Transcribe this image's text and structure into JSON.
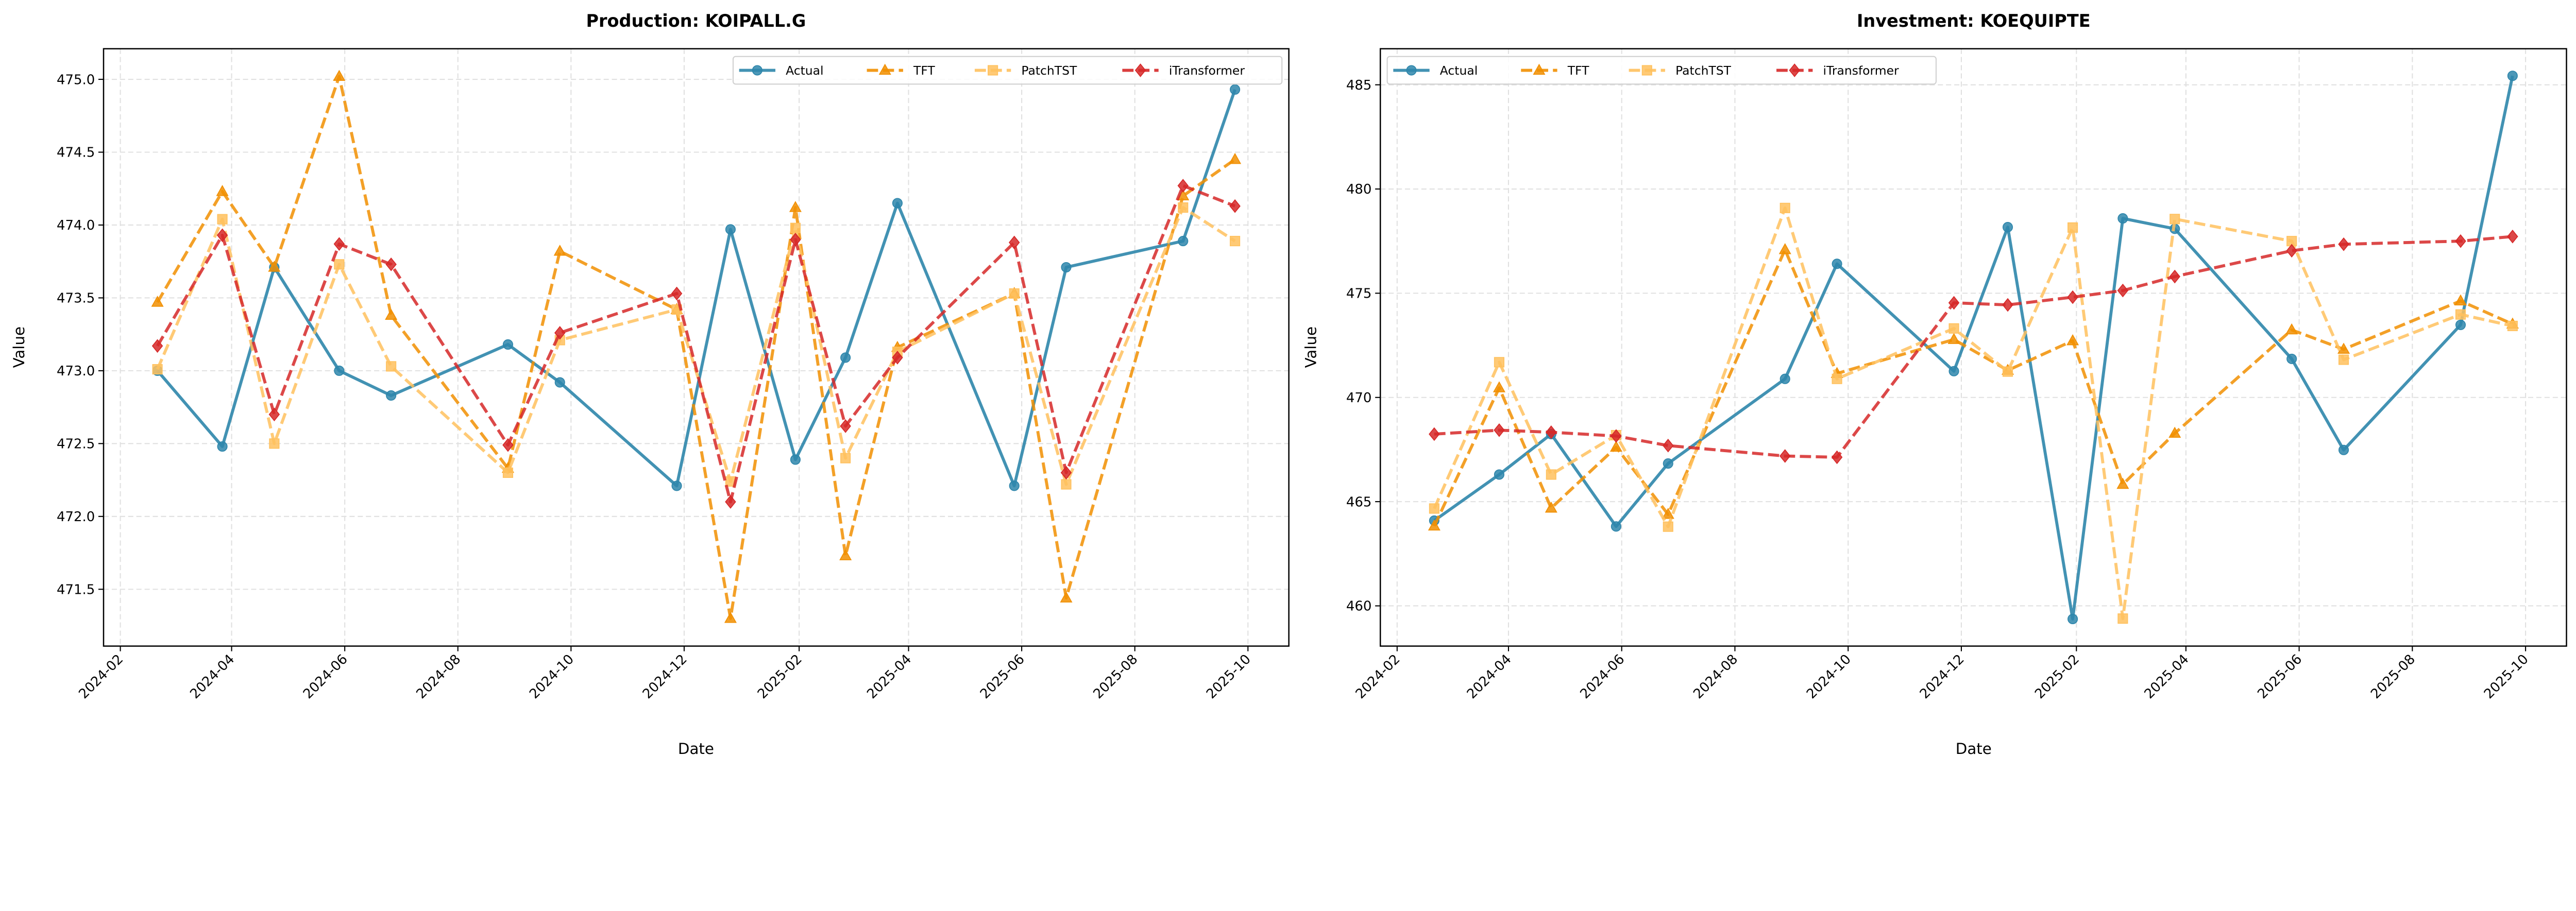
{
  "chart_data": [
    {
      "type": "line",
      "title": "Production: KOIPALL.G",
      "xlabel": "Date",
      "ylabel": "Value",
      "ylim": [
        471.11,
        475.21
      ],
      "yticks": [
        "471.5",
        "472.0",
        "472.5",
        "473.0",
        "473.5",
        "474.0",
        "474.5",
        "475.0"
      ],
      "xticks": [
        "2024-02",
        "2024-04",
        "2024-06",
        "2024-08",
        "2024-10",
        "2024-12",
        "2025-02",
        "2025-04",
        "2025-06",
        "2025-08",
        "2025-10"
      ],
      "grid": true,
      "legend_position": "upper-right",
      "x": [
        "2024-02-21",
        "2024-03-27",
        "2024-04-24",
        "2024-05-29",
        "2024-06-26",
        "2024-08-28",
        "2024-09-25",
        "2024-11-27",
        "2024-12-26",
        "2025-01-30",
        "2025-02-26",
        "2025-03-26",
        "2025-05-28",
        "2025-06-25",
        "2025-08-27",
        "2025-09-24"
      ],
      "series": [
        {
          "name": "Actual",
          "color": "#2E86AB",
          "marker": "circle",
          "style": "solid",
          "values": [
            473.0,
            472.48,
            473.71,
            473.0,
            472.83,
            473.18,
            472.92,
            472.21,
            473.97,
            472.39,
            473.09,
            474.15,
            472.21,
            473.71,
            473.89,
            474.93
          ]
        },
        {
          "name": "TFT",
          "color": "#F18F01",
          "marker": "triangle",
          "style": "dashed",
          "values": [
            473.47,
            474.23,
            473.71,
            475.02,
            473.38,
            472.33,
            473.82,
            473.42,
            471.3,
            474.12,
            471.73,
            473.16,
            473.53,
            471.44,
            474.2,
            474.45
          ]
        },
        {
          "name": "PatchTST",
          "color": "#FFC15E",
          "marker": "square",
          "style": "dashed",
          "values": [
            473.01,
            474.04,
            472.5,
            473.73,
            473.03,
            472.3,
            473.21,
            473.42,
            472.24,
            473.98,
            472.4,
            473.13,
            473.53,
            472.22,
            474.12,
            473.89
          ]
        },
        {
          "name": "iTransformer",
          "color": "#D62828",
          "marker": "diamond",
          "style": "dashed",
          "values": [
            473.17,
            473.93,
            472.7,
            473.87,
            473.73,
            472.49,
            473.26,
            473.53,
            472.1,
            473.9,
            472.62,
            473.09,
            473.88,
            472.3,
            474.27,
            474.13
          ]
        }
      ]
    },
    {
      "type": "line",
      "title": "Investment: KOEQUIPTE",
      "xlabel": "Date",
      "ylabel": "Value",
      "ylim": [
        458.07,
        486.73
      ],
      "yticks": [
        "460",
        "465",
        "470",
        "475",
        "480",
        "485"
      ],
      "xticks": [
        "2024-02",
        "2024-04",
        "2024-06",
        "2024-08",
        "2024-10",
        "2024-12",
        "2025-02",
        "2025-04",
        "2025-06",
        "2025-08",
        "2025-10"
      ],
      "grid": true,
      "legend_position": "upper-left",
      "x": [
        "2024-02-21",
        "2024-03-27",
        "2024-04-24",
        "2024-05-29",
        "2024-06-26",
        "2024-08-28",
        "2024-09-25",
        "2024-11-27",
        "2024-12-26",
        "2025-01-30",
        "2025-02-26",
        "2025-03-26",
        "2025-05-28",
        "2025-06-25",
        "2025-08-27",
        "2025-09-24"
      ],
      "series": [
        {
          "name": "Actual",
          "color": "#2E86AB",
          "marker": "circle",
          "style": "solid",
          "values": [
            464.09,
            466.3,
            468.24,
            463.81,
            466.83,
            470.89,
            476.41,
            471.26,
            478.17,
            459.37,
            478.59,
            478.09,
            471.85,
            467.48,
            473.48,
            485.43
          ]
        },
        {
          "name": "TFT",
          "color": "#F18F01",
          "marker": "triangle",
          "style": "dashed",
          "values": [
            463.83,
            470.46,
            464.69,
            467.61,
            464.39,
            477.09,
            471.15,
            472.78,
            471.3,
            472.72,
            465.83,
            468.28,
            473.24,
            472.31,
            474.63,
            473.52
          ]
        },
        {
          "name": "PatchTST",
          "color": "#FFC15E",
          "marker": "square",
          "style": "dashed",
          "values": [
            464.67,
            471.69,
            466.3,
            468.19,
            463.8,
            479.09,
            470.89,
            473.31,
            471.24,
            478.15,
            459.39,
            478.56,
            477.5,
            471.81,
            473.98,
            473.43
          ]
        },
        {
          "name": "iTransformer",
          "color": "#D62828",
          "marker": "diamond",
          "style": "dashed",
          "values": [
            468.24,
            468.43,
            468.33,
            468.15,
            467.69,
            467.19,
            467.13,
            474.54,
            474.44,
            474.81,
            475.13,
            475.8,
            477.04,
            477.35,
            477.5,
            477.72
          ]
        }
      ]
    }
  ]
}
